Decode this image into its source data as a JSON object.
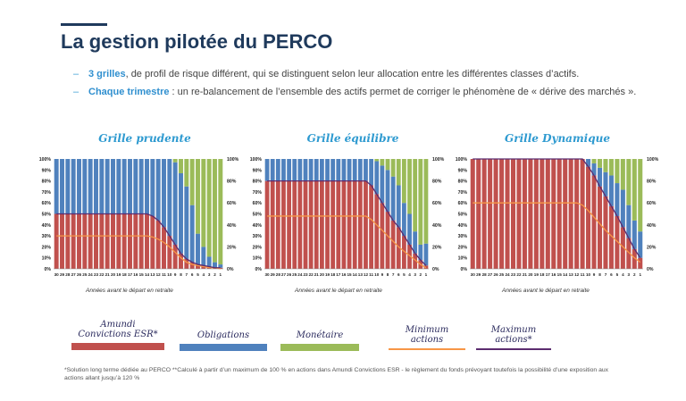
{
  "slide": {
    "title": "La gestion pilotée du PERCO",
    "bullets": [
      {
        "highlight": "3 grilles",
        "text": ", de profil de risque différent, qui se distinguent selon leur allocation entre les différentes classes d’actifs."
      },
      {
        "highlight": "Chaque trimestre",
        "text": " : un re-balancement de l’ensemble des actifs permet de corriger le phénomène de « dérive des marchés »."
      }
    ],
    "footnote": "*Solution long terme dédiée au PERCO **Calculé à partir d’un maximum de 100 % en actions dans Amundi Convictions ESR - le règlement du fonds prévoyant toutefois la possibilité d’une exposition aux actions allant jusqu’à 120 %"
  },
  "colors": {
    "equity": "#c0504d",
    "bonds": "#4f81bd",
    "money": "#9bbb59",
    "min_actions": "#f79646",
    "max_actions": "#5b2c6f"
  },
  "legend": [
    {
      "key": "equity",
      "label": "Amundi Convictions ESR*",
      "kind": "swatch",
      "color": "#c0504d"
    },
    {
      "key": "bonds",
      "label": "Obligations",
      "kind": "swatch",
      "color": "#4f81bd"
    },
    {
      "key": "money",
      "label": "Monétaire",
      "kind": "swatch",
      "color": "#9bbb59"
    },
    {
      "key": "min",
      "label": "Minimum actions",
      "kind": "line",
      "color": "#f79646"
    },
    {
      "key": "max",
      "label": "Maximum actions*",
      "kind": "line",
      "color": "#5b2c6f"
    }
  ],
  "chart_data": [
    {
      "type": "bar",
      "stacked": true,
      "title": "Grille prudente",
      "xlabel": "Années avant le départ en retraite",
      "ylabel": "",
      "ylim": [
        0,
        100
      ],
      "y_tick_labels": [
        "0%",
        "10%",
        "20%",
        "30%",
        "40%",
        "50%",
        "60%",
        "70%",
        "80%",
        "90%",
        "100%"
      ],
      "y2_tick_labels": [
        "0%",
        "20%",
        "40%",
        "60%",
        "80%",
        "100%"
      ],
      "categories": [
        30,
        29,
        28,
        27,
        26,
        25,
        24,
        23,
        22,
        21,
        20,
        19,
        18,
        17,
        16,
        15,
        14,
        13,
        12,
        11,
        10,
        9,
        8,
        7,
        6,
        5,
        4,
        3,
        2,
        1
      ],
      "series": [
        {
          "name": "Amundi Convictions ESR*",
          "color": "#c0504d",
          "values": [
            50,
            50,
            50,
            50,
            50,
            50,
            50,
            50,
            50,
            50,
            50,
            50,
            50,
            50,
            50,
            50,
            50,
            48,
            44,
            38,
            30,
            22,
            14,
            9,
            6,
            4,
            3,
            2,
            1,
            1
          ]
        },
        {
          "name": "Obligations",
          "color": "#4f81bd",
          "values": [
            50,
            50,
            50,
            50,
            50,
            50,
            50,
            50,
            50,
            50,
            50,
            50,
            50,
            50,
            50,
            50,
            50,
            52,
            56,
            62,
            70,
            75,
            73,
            66,
            52,
            28,
            17,
            9,
            5,
            3
          ]
        },
        {
          "name": "Monétaire",
          "color": "#9bbb59",
          "values": [
            0,
            0,
            0,
            0,
            0,
            0,
            0,
            0,
            0,
            0,
            0,
            0,
            0,
            0,
            0,
            0,
            0,
            0,
            0,
            0,
            0,
            3,
            13,
            25,
            42,
            68,
            80,
            89,
            94,
            96
          ]
        }
      ],
      "lines": [
        {
          "name": "Minimum actions",
          "color": "#f79646",
          "values": [
            30,
            30,
            30,
            30,
            30,
            30,
            30,
            30,
            30,
            30,
            30,
            30,
            30,
            30,
            30,
            30,
            30,
            29,
            27,
            24,
            20,
            15,
            10,
            6,
            4,
            3,
            2,
            1,
            1,
            0
          ]
        },
        {
          "name": "Maximum actions*",
          "color": "#5b2c6f",
          "values": [
            50,
            50,
            50,
            50,
            50,
            50,
            50,
            50,
            50,
            50,
            50,
            50,
            50,
            50,
            50,
            50,
            50,
            48,
            44,
            38,
            30,
            22,
            14,
            9,
            6,
            4,
            3,
            2,
            1,
            1
          ]
        }
      ]
    },
    {
      "type": "bar",
      "stacked": true,
      "title": "Grille équilibre",
      "xlabel": "Années avant le départ en retraite",
      "ylabel": "",
      "ylim": [
        0,
        100
      ],
      "y_tick_labels": [
        "0%",
        "10%",
        "20%",
        "30%",
        "40%",
        "50%",
        "60%",
        "70%",
        "80%",
        "90%",
        "100%"
      ],
      "y2_tick_labels": [
        "0%",
        "20%",
        "40%",
        "60%",
        "80%",
        "100%"
      ],
      "categories": [
        30,
        29,
        28,
        27,
        26,
        25,
        24,
        23,
        22,
        21,
        20,
        19,
        18,
        17,
        16,
        15,
        14,
        13,
        12,
        11,
        10,
        9,
        8,
        7,
        6,
        5,
        4,
        3,
        2,
        1
      ],
      "series": [
        {
          "name": "Amundi Convictions ESR*",
          "color": "#c0504d",
          "values": [
            80,
            80,
            80,
            80,
            80,
            80,
            80,
            80,
            80,
            80,
            80,
            80,
            80,
            80,
            80,
            80,
            80,
            80,
            80,
            76,
            68,
            60,
            52,
            44,
            38,
            30,
            22,
            14,
            8,
            3
          ]
        },
        {
          "name": "Obligations",
          "color": "#4f81bd",
          "values": [
            20,
            20,
            20,
            20,
            20,
            20,
            20,
            20,
            20,
            20,
            20,
            20,
            20,
            20,
            20,
            20,
            20,
            20,
            20,
            24,
            30,
            34,
            38,
            40,
            38,
            30,
            28,
            20,
            14,
            20
          ]
        },
        {
          "name": "Monétaire",
          "color": "#9bbb59",
          "values": [
            0,
            0,
            0,
            0,
            0,
            0,
            0,
            0,
            0,
            0,
            0,
            0,
            0,
            0,
            0,
            0,
            0,
            0,
            0,
            0,
            2,
            6,
            10,
            16,
            24,
            40,
            50,
            66,
            78,
            77
          ]
        }
      ],
      "lines": [
        {
          "name": "Minimum actions",
          "color": "#f79646",
          "values": [
            48,
            48,
            48,
            48,
            48,
            48,
            48,
            48,
            48,
            48,
            48,
            48,
            48,
            48,
            48,
            48,
            48,
            48,
            48,
            45,
            40,
            35,
            30,
            25,
            20,
            16,
            12,
            8,
            4,
            1
          ]
        },
        {
          "name": "Maximum actions*",
          "color": "#5b2c6f",
          "values": [
            80,
            80,
            80,
            80,
            80,
            80,
            80,
            80,
            80,
            80,
            80,
            80,
            80,
            80,
            80,
            80,
            80,
            80,
            80,
            76,
            68,
            60,
            52,
            44,
            38,
            30,
            22,
            14,
            8,
            3
          ]
        }
      ]
    },
    {
      "type": "bar",
      "stacked": true,
      "title": "Grille Dynamique",
      "xlabel": "Années avant le départ en retraite",
      "ylabel": "",
      "ylim": [
        0,
        100
      ],
      "y_tick_labels": [
        "0%",
        "10%",
        "20%",
        "30%",
        "40%",
        "50%",
        "60%",
        "70%",
        "80%",
        "90%",
        "100%"
      ],
      "y2_tick_labels": [
        "0%",
        "20%",
        "40%",
        "60%",
        "80%",
        "100%"
      ],
      "categories": [
        30,
        29,
        28,
        27,
        26,
        25,
        24,
        23,
        22,
        21,
        20,
        19,
        18,
        17,
        16,
        15,
        14,
        13,
        12,
        11,
        10,
        9,
        8,
        7,
        6,
        5,
        4,
        3,
        2,
        1
      ],
      "series": [
        {
          "name": "Amundi Convictions ESR*",
          "color": "#c0504d",
          "values": [
            100,
            100,
            100,
            100,
            100,
            100,
            100,
            100,
            100,
            100,
            100,
            100,
            100,
            100,
            100,
            100,
            100,
            100,
            100,
            100,
            93,
            85,
            75,
            66,
            57,
            48,
            38,
            28,
            18,
            10
          ]
        },
        {
          "name": "Obligations",
          "color": "#4f81bd",
          "values": [
            0,
            0,
            0,
            0,
            0,
            0,
            0,
            0,
            0,
            0,
            0,
            0,
            0,
            0,
            0,
            0,
            0,
            0,
            0,
            0,
            7,
            11,
            17,
            22,
            28,
            30,
            34,
            30,
            26,
            24
          ]
        },
        {
          "name": "Monétaire",
          "color": "#9bbb59",
          "values": [
            0,
            0,
            0,
            0,
            0,
            0,
            0,
            0,
            0,
            0,
            0,
            0,
            0,
            0,
            0,
            0,
            0,
            0,
            0,
            0,
            0,
            4,
            8,
            12,
            15,
            22,
            28,
            42,
            56,
            66
          ]
        }
      ],
      "lines": [
        {
          "name": "Minimum actions",
          "color": "#f79646",
          "values": [
            60,
            60,
            60,
            60,
            60,
            60,
            60,
            60,
            60,
            60,
            60,
            60,
            60,
            60,
            60,
            60,
            60,
            60,
            60,
            58,
            53,
            47,
            41,
            35,
            30,
            25,
            20,
            15,
            10,
            6
          ]
        },
        {
          "name": "Maximum actions*",
          "color": "#5b2c6f",
          "values": [
            100,
            100,
            100,
            100,
            100,
            100,
            100,
            100,
            100,
            100,
            100,
            100,
            100,
            100,
            100,
            100,
            100,
            100,
            100,
            100,
            93,
            85,
            75,
            66,
            57,
            48,
            38,
            28,
            18,
            10
          ]
        }
      ]
    }
  ]
}
